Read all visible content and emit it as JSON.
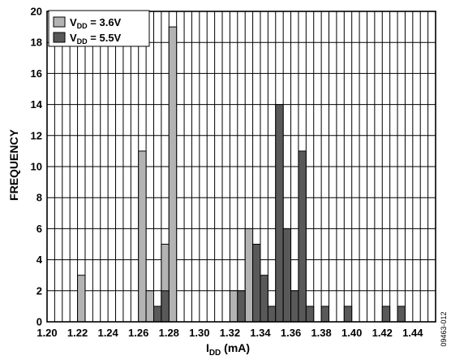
{
  "chart_data": {
    "type": "bar",
    "xlabel_main": "I",
    "xlabel_sub": "DD",
    "xlabel_unit": " (mA)",
    "ylabel": "FREQUENCY",
    "ylim": [
      0,
      20
    ],
    "xlim": [
      1.2,
      1.455
    ],
    "bin_width": 0.005,
    "y_ticks": [
      0,
      2,
      4,
      6,
      8,
      10,
      12,
      14,
      16,
      18,
      20
    ],
    "x_ticks": [
      "1.20",
      "1.22",
      "1.24",
      "1.26",
      "1.28",
      "1.30",
      "1.32",
      "1.34",
      "1.36",
      "1.38",
      "1.40",
      "1.42",
      "1.44"
    ],
    "grid": true,
    "legend_position": "top-left",
    "figure_id": "09463-012",
    "series": [
      {
        "name_main": "V",
        "name_sub": "DD",
        "name_tail": " = 3.6V",
        "color": "#b3b3b3",
        "x": [
          1.22,
          1.26,
          1.265,
          1.275,
          1.28,
          1.32,
          1.33
        ],
        "values": [
          3,
          11,
          2,
          5,
          19,
          2,
          6
        ]
      },
      {
        "name_main": "V",
        "name_sub": "DD",
        "name_tail": " = 5.5V",
        "color": "#595959",
        "x": [
          1.27,
          1.275,
          1.325,
          1.335,
          1.34,
          1.345,
          1.35,
          1.355,
          1.36,
          1.365,
          1.37,
          1.38,
          1.395,
          1.42,
          1.43
        ],
        "values": [
          1,
          2,
          2,
          5,
          3,
          1,
          14,
          6,
          2,
          11,
          1,
          1,
          1,
          1,
          1
        ]
      }
    ]
  }
}
